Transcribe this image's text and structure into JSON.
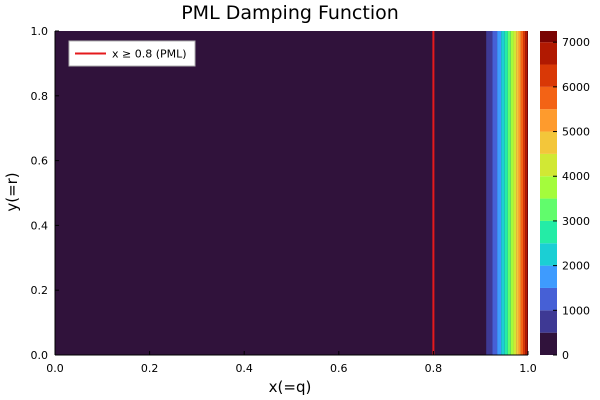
{
  "chart_data": {
    "type": "heatmap",
    "title": "PML Damping Function",
    "xlabel": "x(=q)",
    "ylabel": "y(=r)",
    "xlim": [
      0.0,
      1.0
    ],
    "ylim": [
      0.0,
      1.0
    ],
    "x_ticks": [
      "0.0",
      "0.2",
      "0.4",
      "0.6",
      "0.8",
      "1.0"
    ],
    "y_ticks": [
      "0.0",
      "0.2",
      "0.4",
      "0.6",
      "0.8",
      "1.0"
    ],
    "grid": false,
    "legend": {
      "placement": "top-left",
      "entries": [
        {
          "label": "x ≥ 0.8 (PML)",
          "color": "#e41a1c"
        }
      ]
    },
    "marker_line": {
      "x": 0.8,
      "orientation": "vertical",
      "color": "#e41a1c"
    },
    "field": {
      "description_value": "damping is 0 for x < 0.88, then rises steeply to ~7200 at x = 1.0",
      "zero_until_x": 0.88,
      "max_value": 7200
    },
    "colorbar": {
      "range": [
        0,
        7250
      ],
      "ticks": [
        "0",
        "1000",
        "2000",
        "3000",
        "4000",
        "5000",
        "6000",
        "7000"
      ],
      "levels": [
        {
          "from": 0,
          "to": 500,
          "color": "#30123b"
        },
        {
          "from": 500,
          "to": 1000,
          "color": "#3e3994"
        },
        {
          "from": 1000,
          "to": 1500,
          "color": "#4660d6"
        },
        {
          "from": 1500,
          "to": 2000,
          "color": "#3e9bfe"
        },
        {
          "from": 2000,
          "to": 2500,
          "color": "#1bcfd4"
        },
        {
          "from": 2500,
          "to": 3000,
          "color": "#24eca6"
        },
        {
          "from": 3000,
          "to": 3500,
          "color": "#61fc6c"
        },
        {
          "from": 3500,
          "to": 4000,
          "color": "#a4fc3c"
        },
        {
          "from": 4000,
          "to": 4500,
          "color": "#d1e834"
        },
        {
          "from": 4500,
          "to": 5000,
          "color": "#f3c63a"
        },
        {
          "from": 5000,
          "to": 5500,
          "color": "#fe9b2d"
        },
        {
          "from": 5500,
          "to": 6000,
          "color": "#f36315"
        },
        {
          "from": 6000,
          "to": 6500,
          "color": "#d93806"
        },
        {
          "from": 6500,
          "to": 7000,
          "color": "#b11901"
        },
        {
          "from": 7000,
          "to": 7250,
          "color": "#7a0403"
        }
      ]
    }
  }
}
